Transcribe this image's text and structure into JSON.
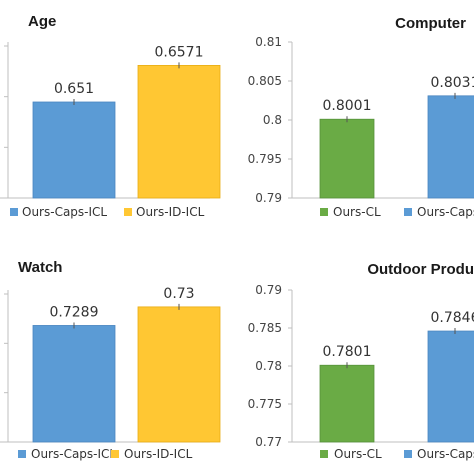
{
  "colors": {
    "blue": "#5b9bd5",
    "blue_edge": "#4a86c0",
    "gold": "#ffc733",
    "gold_edge": "#e8ac14",
    "green": "#6aab45",
    "green_edge": "#56923a",
    "axis": "#bfbfbf"
  },
  "chart_data": [
    {
      "type": "bar",
      "title": "Age",
      "categories": [
        "Ours-Caps-ICL",
        "Ours-ID-ICL"
      ],
      "values": [
        0.651,
        0.6571
      ],
      "value_labels": [
        "0.651",
        "0.6571"
      ],
      "colors": [
        "blue",
        "gold"
      ],
      "legend": [
        "Ours-Caps-ICL",
        "Ours-ID-ICL"
      ],
      "yticks": [],
      "ylim": [
        0.635,
        0.661
      ]
    },
    {
      "type": "bar",
      "title": "Computer",
      "categories": [
        "Ours-CL",
        "Ours-Caps-ICL"
      ],
      "values": [
        0.8001,
        0.8031
      ],
      "value_labels": [
        "0.8001",
        "0.8031"
      ],
      "colors": [
        "green",
        "blue"
      ],
      "legend": [
        "Ours-CL",
        "Ours-Caps-ICL"
      ],
      "yticks": [
        "0.79",
        "0.795",
        "0.8",
        "0.805",
        "0.81"
      ],
      "ylim": [
        0.79,
        0.81
      ]
    },
    {
      "type": "bar",
      "title": "Watch",
      "categories": [
        "Ours-Caps-ICL",
        "Ours-ID-ICL"
      ],
      "values": [
        0.7289,
        0.73
      ],
      "value_labels": [
        "0.7289",
        "0.73"
      ],
      "colors": [
        "blue",
        "gold"
      ],
      "legend": [
        "Ours-Caps-ICL",
        "Ours-ID-ICL"
      ],
      "yticks": [],
      "ylim": [
        0.722,
        0.731
      ]
    },
    {
      "type": "bar",
      "title": "Outdoor Produ",
      "categories": [
        "Ours-CL",
        "Ours-Caps-ICL"
      ],
      "values": [
        0.7801,
        0.7846
      ],
      "value_labels": [
        "0.7801",
        "0.7846"
      ],
      "colors": [
        "green",
        "blue"
      ],
      "legend": [
        "Ours-CL",
        "Ours-Caps-ICL"
      ],
      "yticks": [
        "0.77",
        "0.775",
        "0.78",
        "0.785",
        "0.79"
      ],
      "ylim": [
        0.77,
        0.79
      ]
    }
  ]
}
